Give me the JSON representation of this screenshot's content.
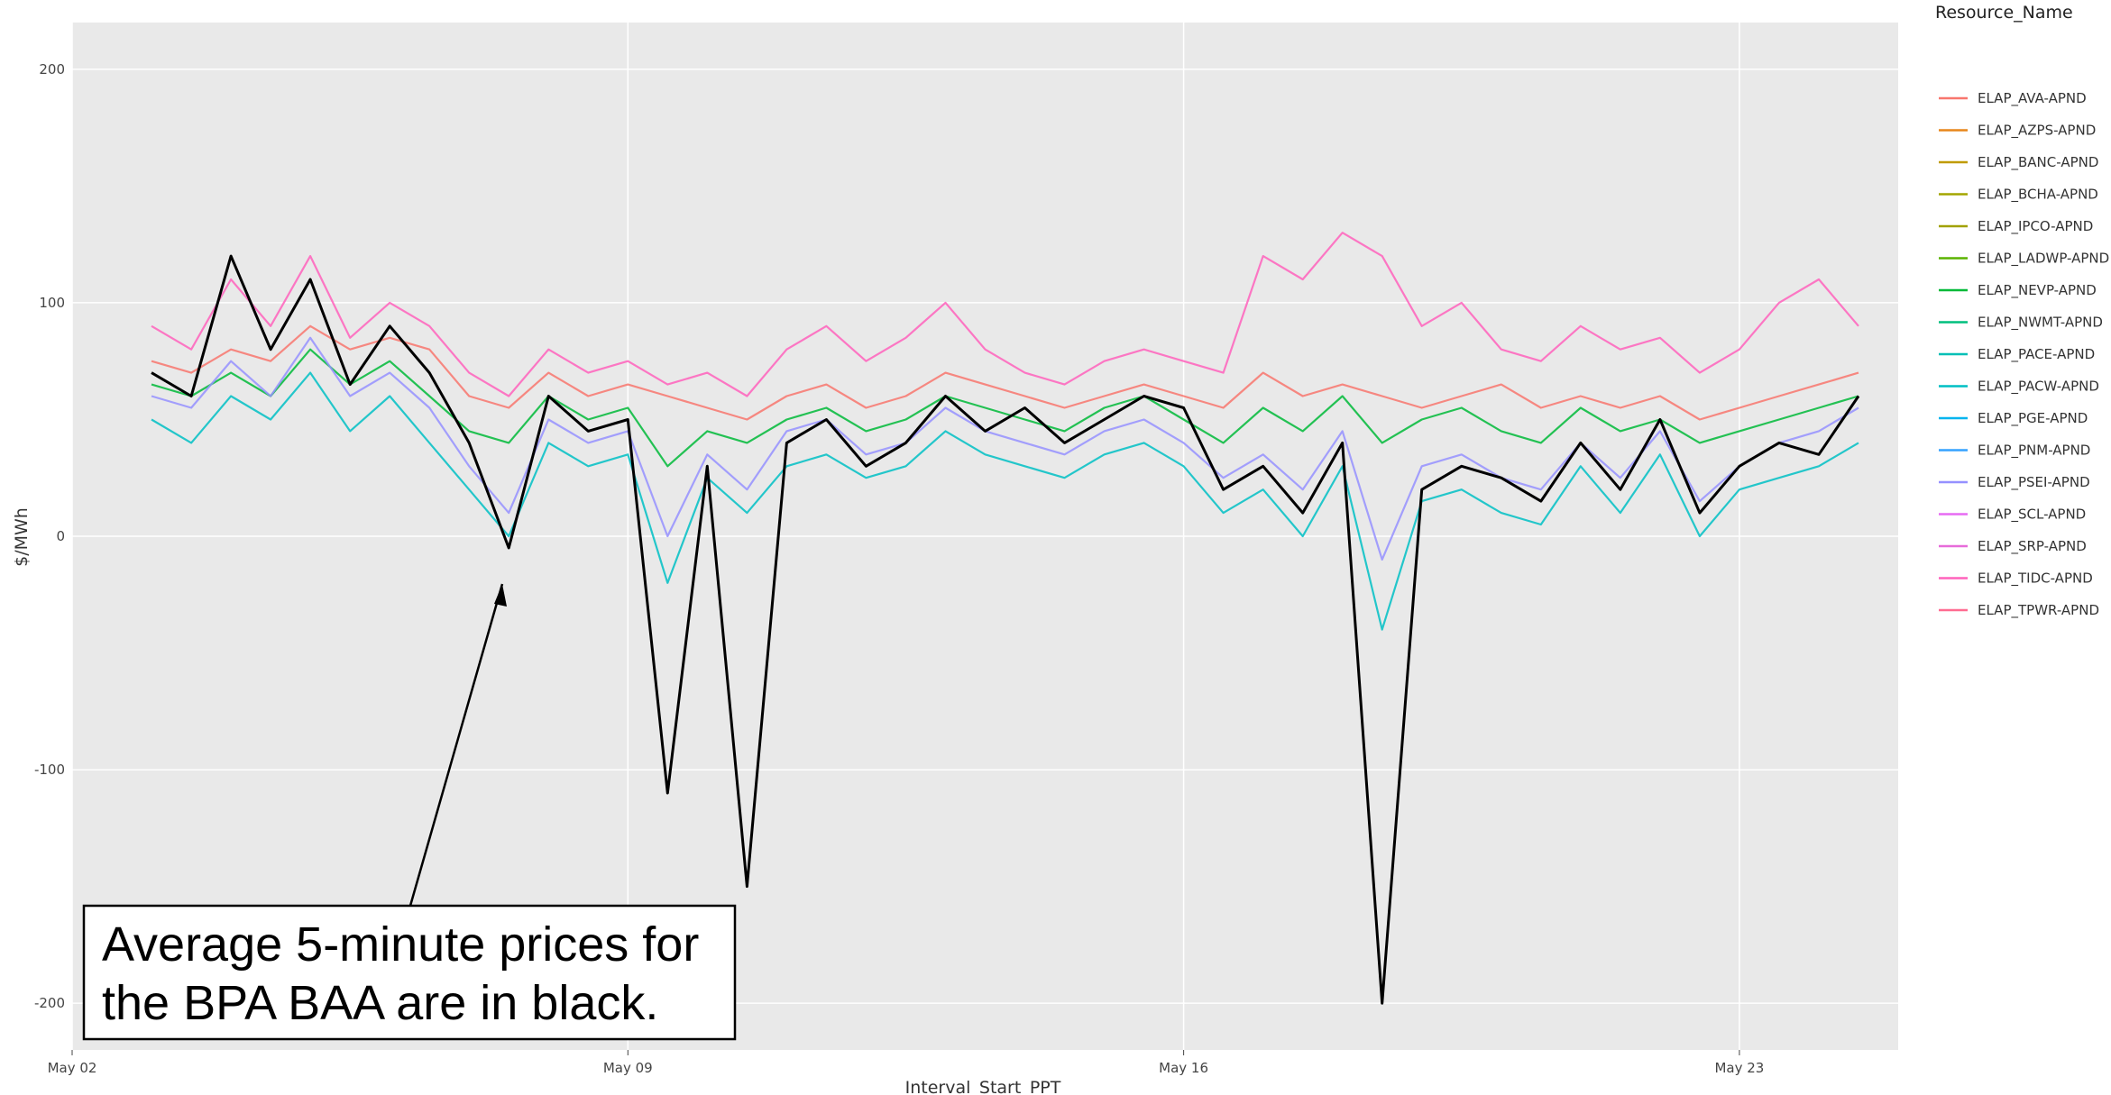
{
  "chart_data": {
    "type": "line",
    "xlabel": "Interval_Start_PPT",
    "ylabel": "$/MWh",
    "x_ticks": [
      "May 02",
      "May 09",
      "May 16",
      "May 23"
    ],
    "x_range": [
      "2021-05-02",
      "2021-05-25"
    ],
    "ylim": [
      -220,
      220
    ],
    "y_ticks": [
      -200,
      -100,
      0,
      100,
      200
    ],
    "grid": true,
    "legend": {
      "title": "Resource_Name",
      "placement": "right",
      "entries": [
        {
          "name": "ELAP_AVA-APND",
          "color": "#F8766D"
        },
        {
          "name": "ELAP_AZPS-APND",
          "color": "#E7861B"
        },
        {
          "name": "ELAP_BANC-APND",
          "color": "#C09B00"
        },
        {
          "name": "ELAP_BCHA-APND",
          "color": "#A3A500"
        },
        {
          "name": "ELAP_IPCO-APND",
          "color": "#A1A100"
        },
        {
          "name": "ELAP_LADWP-APND",
          "color": "#5BB300"
        },
        {
          "name": "ELAP_NEVP-APND",
          "color": "#00BA38"
        },
        {
          "name": "ELAP_NWMT-APND",
          "color": "#00BF7D"
        },
        {
          "name": "ELAP_PACE-APND",
          "color": "#00BFB6"
        },
        {
          "name": "ELAP_PACW-APND",
          "color": "#00BFC4"
        },
        {
          "name": "ELAP_PGE-APND",
          "color": "#00B4EF"
        },
        {
          "name": "ELAP_PNM-APND",
          "color": "#35A2FF"
        },
        {
          "name": "ELAP_PSEI-APND",
          "color": "#9590FF"
        },
        {
          "name": "ELAP_SCL-APND",
          "color": "#E76BF3"
        },
        {
          "name": "ELAP_SRP-APND",
          "color": "#E76BD9"
        },
        {
          "name": "ELAP_TIDC-APND",
          "color": "#FF62BC"
        },
        {
          "name": "ELAP_TPWR-APND",
          "color": "#FF6C91"
        }
      ]
    },
    "series_note_color_bpa": "#000000",
    "annotation": {
      "lines": [
        "Average 5-minute prices for",
        "the BPA BAA are in black."
      ],
      "arrow_target": {
        "x": "2021-05-07T13:00",
        "y": -20
      }
    },
    "bpa_series": {
      "name": "",
      "color": "#000000",
      "x": [
        "2021-05-03T00:00",
        "2021-05-03T12:00",
        "2021-05-04T00:00",
        "2021-05-04T12:00",
        "2021-05-05T00:00",
        "2021-05-05T12:00",
        "2021-05-06T00:00",
        "2021-05-06T12:00",
        "2021-05-07T00:00",
        "2021-05-07T12:00",
        "2021-05-08T00:00",
        "2021-05-08T12:00",
        "2021-05-09T00:00",
        "2021-05-09T12:00",
        "2021-05-10T00:00",
        "2021-05-10T12:00",
        "2021-05-11T00:00",
        "2021-05-11T12:00",
        "2021-05-12T00:00",
        "2021-05-12T12:00",
        "2021-05-13T00:00",
        "2021-05-13T12:00",
        "2021-05-14T00:00",
        "2021-05-14T12:00",
        "2021-05-15T00:00",
        "2021-05-15T12:00",
        "2021-05-16T00:00",
        "2021-05-16T12:00",
        "2021-05-17T00:00",
        "2021-05-17T12:00",
        "2021-05-18T00:00",
        "2021-05-18T12:00",
        "2021-05-19T00:00",
        "2021-05-19T12:00",
        "2021-05-20T00:00",
        "2021-05-20T12:00",
        "2021-05-21T00:00",
        "2021-05-21T12:00",
        "2021-05-22T00:00",
        "2021-05-22T12:00",
        "2021-05-23T00:00",
        "2021-05-23T12:00",
        "2021-05-24T00:00",
        "2021-05-24T12:00"
      ],
      "values": [
        70,
        60,
        120,
        80,
        110,
        65,
        90,
        70,
        40,
        -5,
        60,
        45,
        50,
        -110,
        30,
        -150,
        40,
        50,
        30,
        40,
        60,
        45,
        55,
        40,
        50,
        60,
        55,
        20,
        30,
        10,
        40,
        -200,
        20,
        30,
        25,
        15,
        40,
        20,
        50,
        10,
        30,
        40,
        35,
        60
      ]
    },
    "background_series": {
      "x": [
        "2021-05-03T00:00",
        "2021-05-03T12:00",
        "2021-05-04T00:00",
        "2021-05-04T12:00",
        "2021-05-05T00:00",
        "2021-05-05T12:00",
        "2021-05-06T00:00",
        "2021-05-06T12:00",
        "2021-05-07T00:00",
        "2021-05-07T12:00",
        "2021-05-08T00:00",
        "2021-05-08T12:00",
        "2021-05-09T00:00",
        "2021-05-09T12:00",
        "2021-05-10T00:00",
        "2021-05-10T12:00",
        "2021-05-11T00:00",
        "2021-05-11T12:00",
        "2021-05-12T00:00",
        "2021-05-12T12:00",
        "2021-05-13T00:00",
        "2021-05-13T12:00",
        "2021-05-14T00:00",
        "2021-05-14T12:00",
        "2021-05-15T00:00",
        "2021-05-15T12:00",
        "2021-05-16T00:00",
        "2021-05-16T12:00",
        "2021-05-17T00:00",
        "2021-05-17T12:00",
        "2021-05-18T00:00",
        "2021-05-18T12:00",
        "2021-05-19T00:00",
        "2021-05-19T12:00",
        "2021-05-20T00:00",
        "2021-05-20T12:00",
        "2021-05-21T00:00",
        "2021-05-21T12:00",
        "2021-05-22T00:00",
        "2021-05-22T12:00",
        "2021-05-23T00:00",
        "2021-05-23T12:00",
        "2021-05-24T00:00",
        "2021-05-24T12:00"
      ],
      "values": [
        [
          75,
          70,
          80,
          75,
          90,
          80,
          85,
          80,
          60,
          55,
          70,
          60,
          65,
          60,
          55,
          50,
          60,
          65,
          55,
          60,
          70,
          65,
          60,
          55,
          60,
          65,
          60,
          55,
          70,
          60,
          65,
          60,
          55,
          60,
          65,
          55,
          60,
          55,
          60,
          50,
          55,
          60,
          65,
          70
        ],
        [
          65,
          60,
          70,
          60,
          80,
          65,
          75,
          60,
          45,
          40,
          60,
          50,
          55,
          30,
          45,
          40,
          50,
          55,
          45,
          50,
          60,
          55,
          50,
          45,
          55,
          60,
          50,
          40,
          55,
          45,
          60,
          40,
          50,
          55,
          45,
          40,
          55,
          45,
          50,
          40,
          45,
          50,
          55,
          60
        ],
        [
          90,
          80,
          110,
          90,
          120,
          85,
          100,
          90,
          70,
          60,
          80,
          70,
          75,
          65,
          70,
          60,
          80,
          90,
          75,
          85,
          100,
          80,
          70,
          65,
          75,
          80,
          75,
          70,
          120,
          110,
          130,
          120,
          90,
          100,
          80,
          75,
          90,
          80,
          85,
          70,
          80,
          100,
          110,
          90
        ],
        [
          50,
          40,
          60,
          50,
          70,
          45,
          60,
          40,
          20,
          0,
          40,
          30,
          35,
          -20,
          25,
          10,
          30,
          35,
          25,
          30,
          45,
          35,
          30,
          25,
          35,
          40,
          30,
          10,
          20,
          0,
          30,
          -40,
          15,
          20,
          10,
          5,
          30,
          10,
          35,
          0,
          20,
          25,
          30,
          40
        ],
        [
          60,
          55,
          75,
          60,
          85,
          60,
          70,
          55,
          30,
          10,
          50,
          40,
          45,
          0,
          35,
          20,
          45,
          50,
          35,
          40,
          55,
          45,
          40,
          35,
          45,
          50,
          40,
          25,
          35,
          20,
          45,
          -10,
          30,
          35,
          25,
          20,
          40,
          25,
          45,
          15,
          30,
          40,
          45,
          55
        ]
      ],
      "colors": [
        "#F8766D",
        "#00BA38",
        "#FF62BC",
        "#00BFC4",
        "#9590FF"
      ]
    }
  }
}
